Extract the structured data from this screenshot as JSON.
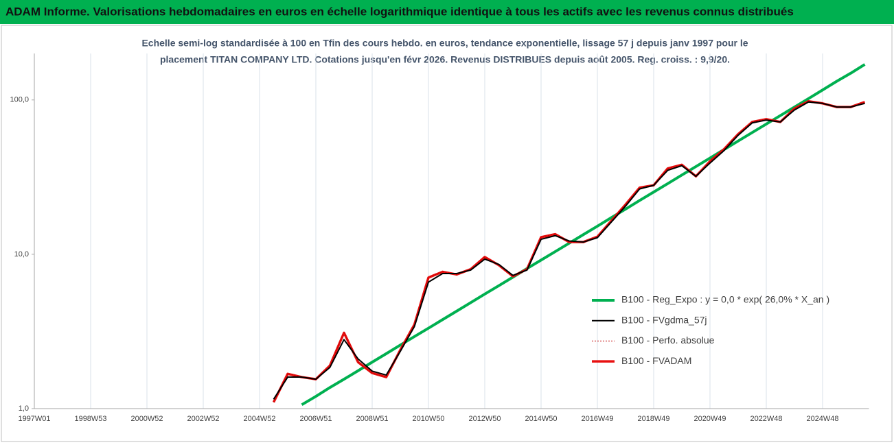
{
  "chart_data": {
    "type": "line",
    "title": "ADAM Informe. Valorisations hebdomadaires en euros en échelle logarithmique identique à tous les actifs avec les revenus connus distribués",
    "subtitle": [
      "Echelle semi-log standardisée à 100 en Tfin des cours hebdo. en euros, tendance exponentielle, lissage 57 j depuis janv 1997 pour le",
      "placement TITAN COMPANY LTD. Cotations jusqu'en févr 2026. Revenus DISTRIBUES depuis août 2005. Reg. croiss. : 9,9/20."
    ],
    "categories": [
      "1997W01",
      null,
      null,
      null,
      "1998W53",
      null,
      null,
      null,
      "2000W52",
      null,
      null,
      null,
      "2002W52",
      null,
      null,
      null,
      "2004W52",
      null,
      null,
      null,
      "2006W51",
      null,
      null,
      null,
      "2008W51",
      null,
      null,
      null,
      "2010W50",
      null,
      null,
      null,
      "2012W50",
      null,
      null,
      null,
      "2014W50",
      null,
      null,
      null,
      "2016W49",
      null,
      null,
      null,
      "2018W49",
      null,
      null,
      null,
      "2020W49",
      null,
      null,
      null,
      "2022W48",
      null,
      null,
      null,
      "2024W48",
      null,
      null,
      null
    ],
    "log_scale": true,
    "ylim": [
      1,
      200
    ],
    "yticks": [
      {
        "value": 1,
        "label": "1,0"
      },
      {
        "value": 10,
        "label": "10,0"
      },
      {
        "value": 100,
        "label": "100,0"
      }
    ],
    "grid": true,
    "legend": "right",
    "series": [
      {
        "name": "B100 - Reg_Expo : y = 0,0 * exp( 26,0% *  X_an )",
        "color": "#00b050",
        "width": 4,
        "dash": false,
        "values": [
          null,
          null,
          null,
          null,
          null,
          null,
          null,
          null,
          null,
          null,
          null,
          null,
          null,
          null,
          null,
          null,
          null,
          null,
          null,
          1.06,
          1.2,
          1.37,
          1.55,
          1.76,
          2.0,
          2.27,
          2.58,
          2.93,
          3.32,
          3.77,
          4.28,
          4.86,
          5.52,
          6.26,
          7.11,
          8.08,
          9.17,
          10.4,
          11.8,
          13.4,
          15.2,
          17.3,
          19.6,
          22.3,
          25.3,
          28.7,
          32.6,
          37.0,
          42.0,
          47.7,
          54.2,
          61.5,
          69.8,
          79.2,
          89.9,
          102,
          116,
          132,
          149,
          170
        ]
      },
      {
        "name": "B100 - FVgdma_57j",
        "color": "#000000",
        "width": 2,
        "dash": false,
        "values": [
          null,
          null,
          null,
          null,
          null,
          null,
          null,
          null,
          null,
          null,
          null,
          null,
          null,
          null,
          null,
          null,
          null,
          1.15,
          1.6,
          1.6,
          1.55,
          1.85,
          2.8,
          2.1,
          1.75,
          1.65,
          2.35,
          3.4,
          6.6,
          7.5,
          7.5,
          7.9,
          9.3,
          8.6,
          7.3,
          7.9,
          12.5,
          13.2,
          12.2,
          12.0,
          12.8,
          16.2,
          20.5,
          26.5,
          28,
          35,
          37.5,
          32,
          39,
          47,
          59,
          71,
          74,
          72,
          86,
          97,
          95,
          90,
          90,
          95
        ]
      },
      {
        "name": "B100 - Perfo. absolue",
        "color": "#c00000",
        "width": 1,
        "dash": true,
        "values": [
          null,
          null,
          null,
          null,
          null,
          null,
          null,
          null,
          null,
          null,
          null,
          null,
          null,
          null,
          null,
          null,
          null,
          1.1,
          1.68,
          1.6,
          1.55,
          1.9,
          3.1,
          2.0,
          1.7,
          1.6,
          2.4,
          3.5,
          7.06,
          7.7,
          7.4,
          8.0,
          9.6,
          8.5,
          7.2,
          8.0,
          12.9,
          13.5,
          12.0,
          12.0,
          13.0,
          16.5,
          21,
          27,
          28,
          36,
          38,
          32,
          40,
          48,
          60,
          72,
          75,
          72,
          88,
          98,
          95,
          90,
          90,
          97
        ]
      },
      {
        "name": "B100 - FVADAM",
        "color": "#e81010",
        "width": 3.5,
        "dash": false,
        "values": [
          null,
          null,
          null,
          null,
          null,
          null,
          null,
          null,
          null,
          null,
          null,
          null,
          null,
          null,
          null,
          null,
          null,
          1.1,
          1.68,
          1.6,
          1.55,
          1.9,
          3.1,
          2.0,
          1.7,
          1.6,
          2.4,
          3.5,
          7.06,
          7.7,
          7.4,
          8.0,
          9.6,
          8.5,
          7.2,
          8.0,
          12.9,
          13.5,
          12.0,
          12.0,
          13.0,
          16.5,
          21,
          27,
          28,
          36,
          38,
          32,
          40,
          48,
          60,
          72,
          75,
          72,
          88,
          98,
          95,
          90,
          90,
          97
        ]
      }
    ]
  }
}
